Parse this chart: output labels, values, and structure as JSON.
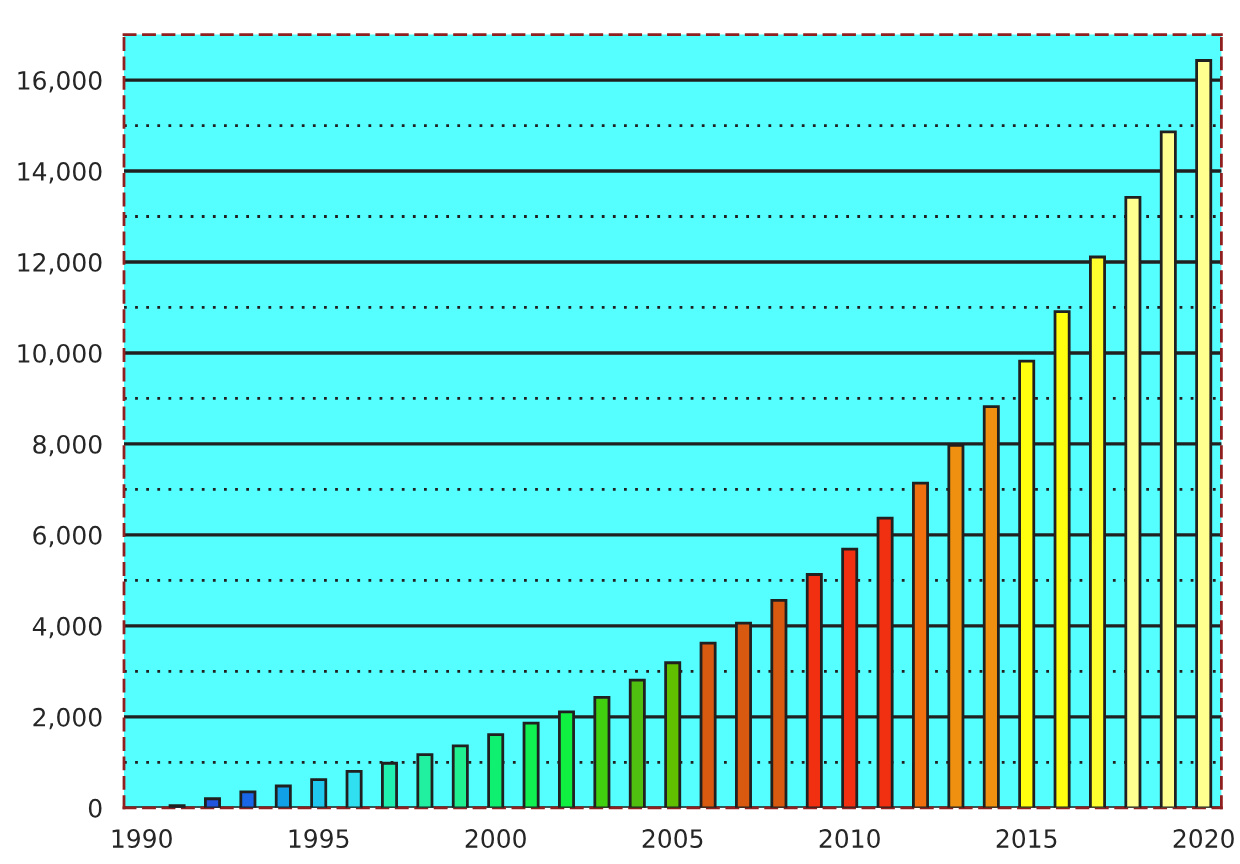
{
  "chart_data": {
    "type": "bar",
    "x": [
      1991,
      1992,
      1993,
      1994,
      1995,
      1996,
      1997,
      1998,
      1999,
      2000,
      2001,
      2002,
      2003,
      2004,
      2005,
      2006,
      2007,
      2008,
      2009,
      2010,
      2011,
      2012,
      2013,
      2014,
      2015,
      2016,
      2017,
      2018,
      2019,
      2020
    ],
    "values": [
      50,
      200,
      350,
      480,
      620,
      800,
      980,
      1170,
      1360,
      1610,
      1860,
      2110,
      2430,
      2810,
      3190,
      3620,
      4060,
      4560,
      5130,
      5690,
      6370,
      7140,
      7970,
      8820,
      9820,
      10910,
      12110,
      13420,
      14860,
      16430
    ],
    "colors": [
      "#1a3a8a",
      "#2255dd",
      "#1a66e8",
      "#10a0e8",
      "#20c8f0",
      "#30e0f0",
      "#20f0b0",
      "#20f0a0",
      "#20f090",
      "#10f070",
      "#10f050",
      "#10f040",
      "#40d010",
      "#50c010",
      "#60c000",
      "#d85a10",
      "#d85a10",
      "#d85a10",
      "#f03010",
      "#f03010",
      "#f03010",
      "#f07010",
      "#f09010",
      "#f09010",
      "#ffff10",
      "#ffff10",
      "#ffff30",
      "#ffff90",
      "#ffff90",
      "#ffff90"
    ],
    "xlim": [
      1989.5,
      2020.5
    ],
    "xticks": [
      1990,
      1995,
      2000,
      2005,
      2010,
      2015,
      2020
    ],
    "ylim": [
      0,
      17000
    ],
    "yticks": [
      {
        "value": 0,
        "label": "0"
      },
      {
        "value": 1000,
        "label": null
      },
      {
        "value": 2000,
        "label": "2,000"
      },
      {
        "value": 3000,
        "label": null
      },
      {
        "value": 4000,
        "label": "4,000"
      },
      {
        "value": 5000,
        "label": null
      },
      {
        "value": 6000,
        "label": "6,000"
      },
      {
        "value": 7000,
        "label": null
      },
      {
        "value": 8000,
        "label": "8,000"
      },
      {
        "value": 9000,
        "label": null
      },
      {
        "value": 10000,
        "label": "10,000"
      },
      {
        "value": 11000,
        "label": null
      },
      {
        "value": 12000,
        "label": "12,000"
      },
      {
        "value": 13000,
        "label": null
      },
      {
        "value": 14000,
        "label": "14,000"
      },
      {
        "value": 15000,
        "label": null
      },
      {
        "value": 16000,
        "label": "16,000"
      }
    ],
    "grid": "y"
  }
}
